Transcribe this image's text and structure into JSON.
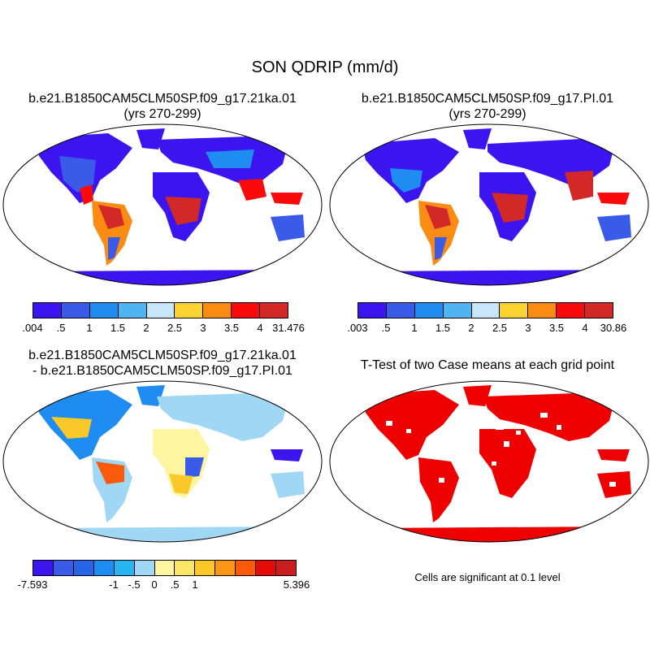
{
  "title": "SON QDRIP (mm/d)",
  "panels": {
    "top_left": {
      "title_line1": "b.e21.B1850CAM5CLM50SP.f09_g17.21ka.01",
      "title_line2": "(yrs 270-299)",
      "colorbar": {
        "colors": [
          "#3c14f0",
          "#3a5ae8",
          "#1e8cf0",
          "#50b4f0",
          "#c8e6fa",
          "#fad232",
          "#fa8c14",
          "#fa0a0a",
          "#d22828"
        ],
        "labels": [
          ".004",
          ".5",
          "1",
          "1.5",
          "2",
          "2.5",
          "3",
          "3.5",
          "4",
          "31.476"
        ]
      }
    },
    "top_right": {
      "title_line1": "b.e21.B1850CAM5CLM50SP.f09_g17.PI.01",
      "title_line2": "(yrs 270-299)",
      "colorbar": {
        "colors": [
          "#3c14f0",
          "#3a5ae8",
          "#1e8cf0",
          "#50b4f0",
          "#c8e6fa",
          "#fad232",
          "#fa8c14",
          "#fa0a0a",
          "#d22828"
        ],
        "labels": [
          ".003",
          ".5",
          "1",
          "1.5",
          "2",
          "2.5",
          "3",
          "3.5",
          "4",
          "30.86"
        ]
      }
    },
    "bottom_left": {
      "title_line1": "b.e21.B1850CAM5CLM50SP.f09_g17.21ka.01",
      "title_line2": "- b.e21.B1850CAM5CLM50SP.f09_g17.PI.01",
      "colorbar": {
        "colors": [
          "#3c14f0",
          "#3a5ae8",
          "#2864e6",
          "#1e8cf0",
          "#28b4f0",
          "#a0d7f5",
          "#fff5a0",
          "#fae664",
          "#fac828",
          "#fa9614",
          "#fa5a0a",
          "#e60a0a",
          "#c81e1e"
        ],
        "labels": [
          "-7.593",
          "-1",
          "-.5",
          "0",
          ".5",
          "1",
          "5.396"
        ],
        "label_positions": [
          0,
          4,
          5,
          6,
          7,
          8,
          13
        ]
      }
    },
    "bottom_right": {
      "title_line1": "T-Test of two Case means at each grid point",
      "note": "Cells are significant at 0.1 level"
    }
  },
  "map_colors": {
    "land_wet": "#d22828",
    "land_mid": "#fad232",
    "land_dry": "#3c14f0",
    "ocean": "#ffffff",
    "diff_neg": "#a0d7f5",
    "diff_pos": "#fae664",
    "signif": "#ee0000"
  }
}
